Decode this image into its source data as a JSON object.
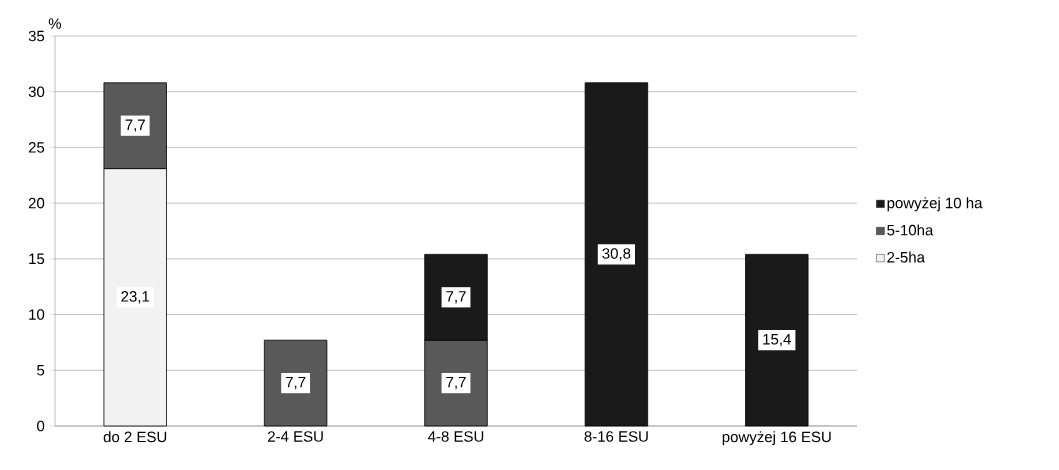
{
  "chart_data": {
    "type": "bar",
    "stacked": true,
    "ylabel": "%",
    "categories": [
      "do 2 ESU",
      "2-4 ESU",
      "4-8 ESU",
      "8-16 ESU",
      "powyżej 16 ESU"
    ],
    "series": [
      {
        "name": "2-5ha",
        "color": "#f2f2f2",
        "values": [
          23.1,
          null,
          null,
          null,
          null
        ],
        "value_labels": [
          "23,1",
          null,
          null,
          null,
          null
        ]
      },
      {
        "name": "5-10ha",
        "color": "#595959",
        "values": [
          7.7,
          7.7,
          7.7,
          null,
          null
        ],
        "value_labels": [
          "7,7",
          "7,7",
          "7,7",
          null,
          null
        ]
      },
      {
        "name": "powyżej 10 ha",
        "color": "#1a1a1a",
        "values": [
          null,
          null,
          7.7,
          30.8,
          15.4
        ],
        "value_labels": [
          null,
          null,
          "7,7",
          "30,8",
          "15,4"
        ]
      }
    ],
    "ylim": [
      0,
      35
    ],
    "yticks": [
      0,
      5,
      10,
      15,
      20,
      25,
      30,
      35
    ],
    "grid": "y",
    "legend": "right"
  }
}
